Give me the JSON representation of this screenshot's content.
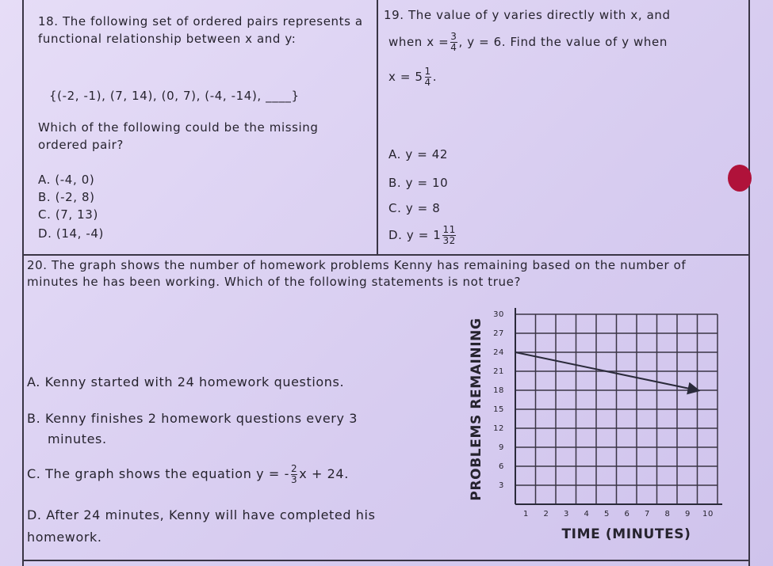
{
  "q18": {
    "number": "18.",
    "text": "The following set of ordered pairs represents a functional relationship between x and y:",
    "set": "{(-2, -1), (7, 14), (0, 7), (-4, -14), ____}",
    "question": "Which of the following could be the missing ordered pair?",
    "choices": [
      {
        "letter": "A.",
        "text": "(-4, 0)"
      },
      {
        "letter": "B.",
        "text": "(-2, 8)"
      },
      {
        "letter": "C.",
        "text": "(7, 13)"
      },
      {
        "letter": "D.",
        "text": "(14, -4)"
      }
    ]
  },
  "q19": {
    "number": "19.",
    "text_1": "The value of y varies directly with x, and",
    "text_2": "when x =",
    "frac_1": {
      "num": "3",
      "den": "4"
    },
    "text_3": ", y = 6. Find the value of y when",
    "text_4": "x = 5",
    "frac_2": {
      "num": "1",
      "den": "4"
    },
    "text_5": ".",
    "choices": [
      {
        "letter": "A.",
        "text": "y = 42"
      },
      {
        "letter": "B.",
        "text": "y = 10"
      },
      {
        "letter": "C.",
        "text": "y = 8"
      },
      {
        "letter": "D.",
        "text": "y = 1",
        "frac": {
          "num": "11",
          "den": "32"
        }
      }
    ]
  },
  "q20": {
    "number": "20.",
    "text": "The graph shows the number of homework problems Kenny has remaining based on the number of minutes he has been working. Which of the following statements is not true?",
    "choices": [
      {
        "letter": "A.",
        "text": "Kenny started with 24 homework questions."
      },
      {
        "letter": "B.",
        "text": "Kenny finishes 2 homework questions every 3 minutes."
      },
      {
        "letter": "C.",
        "text": "The graph shows the equation y = -",
        "frac": {
          "num": "2",
          "den": "3"
        },
        "text_after": "x + 24."
      },
      {
        "letter": "D.",
        "text": "After 24 minutes, Kenny will have completed his homework."
      }
    ]
  },
  "graph": {
    "type": "line",
    "y_label": "PROBLEMS REMAINING",
    "x_label": "TIME (MINUTES)",
    "xlim": [
      0,
      10
    ],
    "ylim": [
      0,
      30
    ],
    "xticks": [
      1,
      2,
      3,
      4,
      5,
      6,
      7,
      8,
      9,
      10
    ],
    "yticks": [
      3,
      6,
      9,
      12,
      15,
      18,
      21,
      24,
      27,
      30
    ],
    "x": [
      0,
      9
    ],
    "y": [
      24,
      18
    ],
    "color": "#2a2a3a",
    "grid": true
  }
}
